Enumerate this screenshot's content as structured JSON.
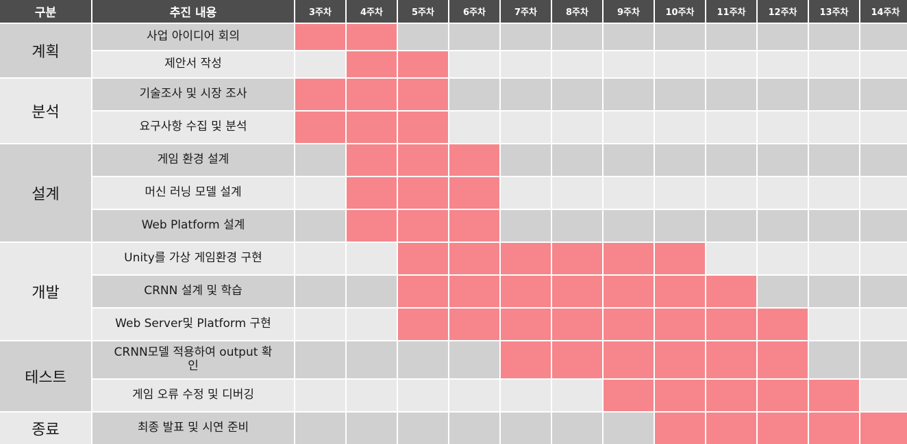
{
  "header": {
    "category": "구분",
    "content": "추진 내용",
    "weeks": [
      "3주차",
      "4주차",
      "5주차",
      "6주차",
      "7주차",
      "8주차",
      "9주차",
      "10주차",
      "11주차",
      "12주차",
      "13주차",
      "14주차"
    ]
  },
  "colors": {
    "header_bg": "#4d4d4d",
    "row_dark": "#d0d0d0",
    "row_light": "#e9e9e9",
    "bar": "#f6868c"
  },
  "categories": [
    {
      "name": "계획",
      "tasks": [
        {
          "label": "사업 아이디어 회의",
          "active": [
            0,
            1
          ]
        },
        {
          "label": "제안서 작성",
          "active": [
            1,
            2
          ]
        }
      ]
    },
    {
      "name": "분석",
      "tasks": [
        {
          "label": "기술조사 및 시장 조사",
          "active": [
            0,
            1,
            2
          ]
        },
        {
          "label": "요구사항 수집 및 분석",
          "active": [
            0,
            1,
            2
          ]
        }
      ]
    },
    {
      "name": "설계",
      "tasks": [
        {
          "label": "게임 환경 설계",
          "active": [
            1,
            2,
            3
          ]
        },
        {
          "label": "머신 러닝 모델 설계",
          "active": [
            1,
            2,
            3
          ]
        },
        {
          "label": "Web Platform 설계",
          "active": [
            1,
            2,
            3
          ]
        }
      ]
    },
    {
      "name": "개발",
      "tasks": [
        {
          "label": "Unity를 가상 게임환경 구현",
          "active": [
            2,
            3,
            4,
            5,
            6,
            7
          ]
        },
        {
          "label": "CRNN 설계 및 학습",
          "active": [
            2,
            3,
            4,
            5,
            6,
            7,
            8
          ]
        },
        {
          "label": "Web Server및 Platform 구현",
          "active": [
            2,
            3,
            4,
            5,
            6,
            7,
            8,
            9
          ]
        }
      ]
    },
    {
      "name": "테스트",
      "tasks": [
        {
          "label": "CRNN모델 적용하여 output 확인",
          "active": [
            4,
            5,
            6,
            7,
            8,
            9
          ]
        },
        {
          "label": "게임 오류 수정 및 디버깅",
          "active": [
            6,
            7,
            8,
            9,
            10
          ]
        }
      ]
    },
    {
      "name": "종료",
      "tasks": [
        {
          "label": "최종 발표 및 시연 준비",
          "active": [
            7,
            8,
            9,
            10,
            11
          ]
        }
      ]
    }
  ]
}
